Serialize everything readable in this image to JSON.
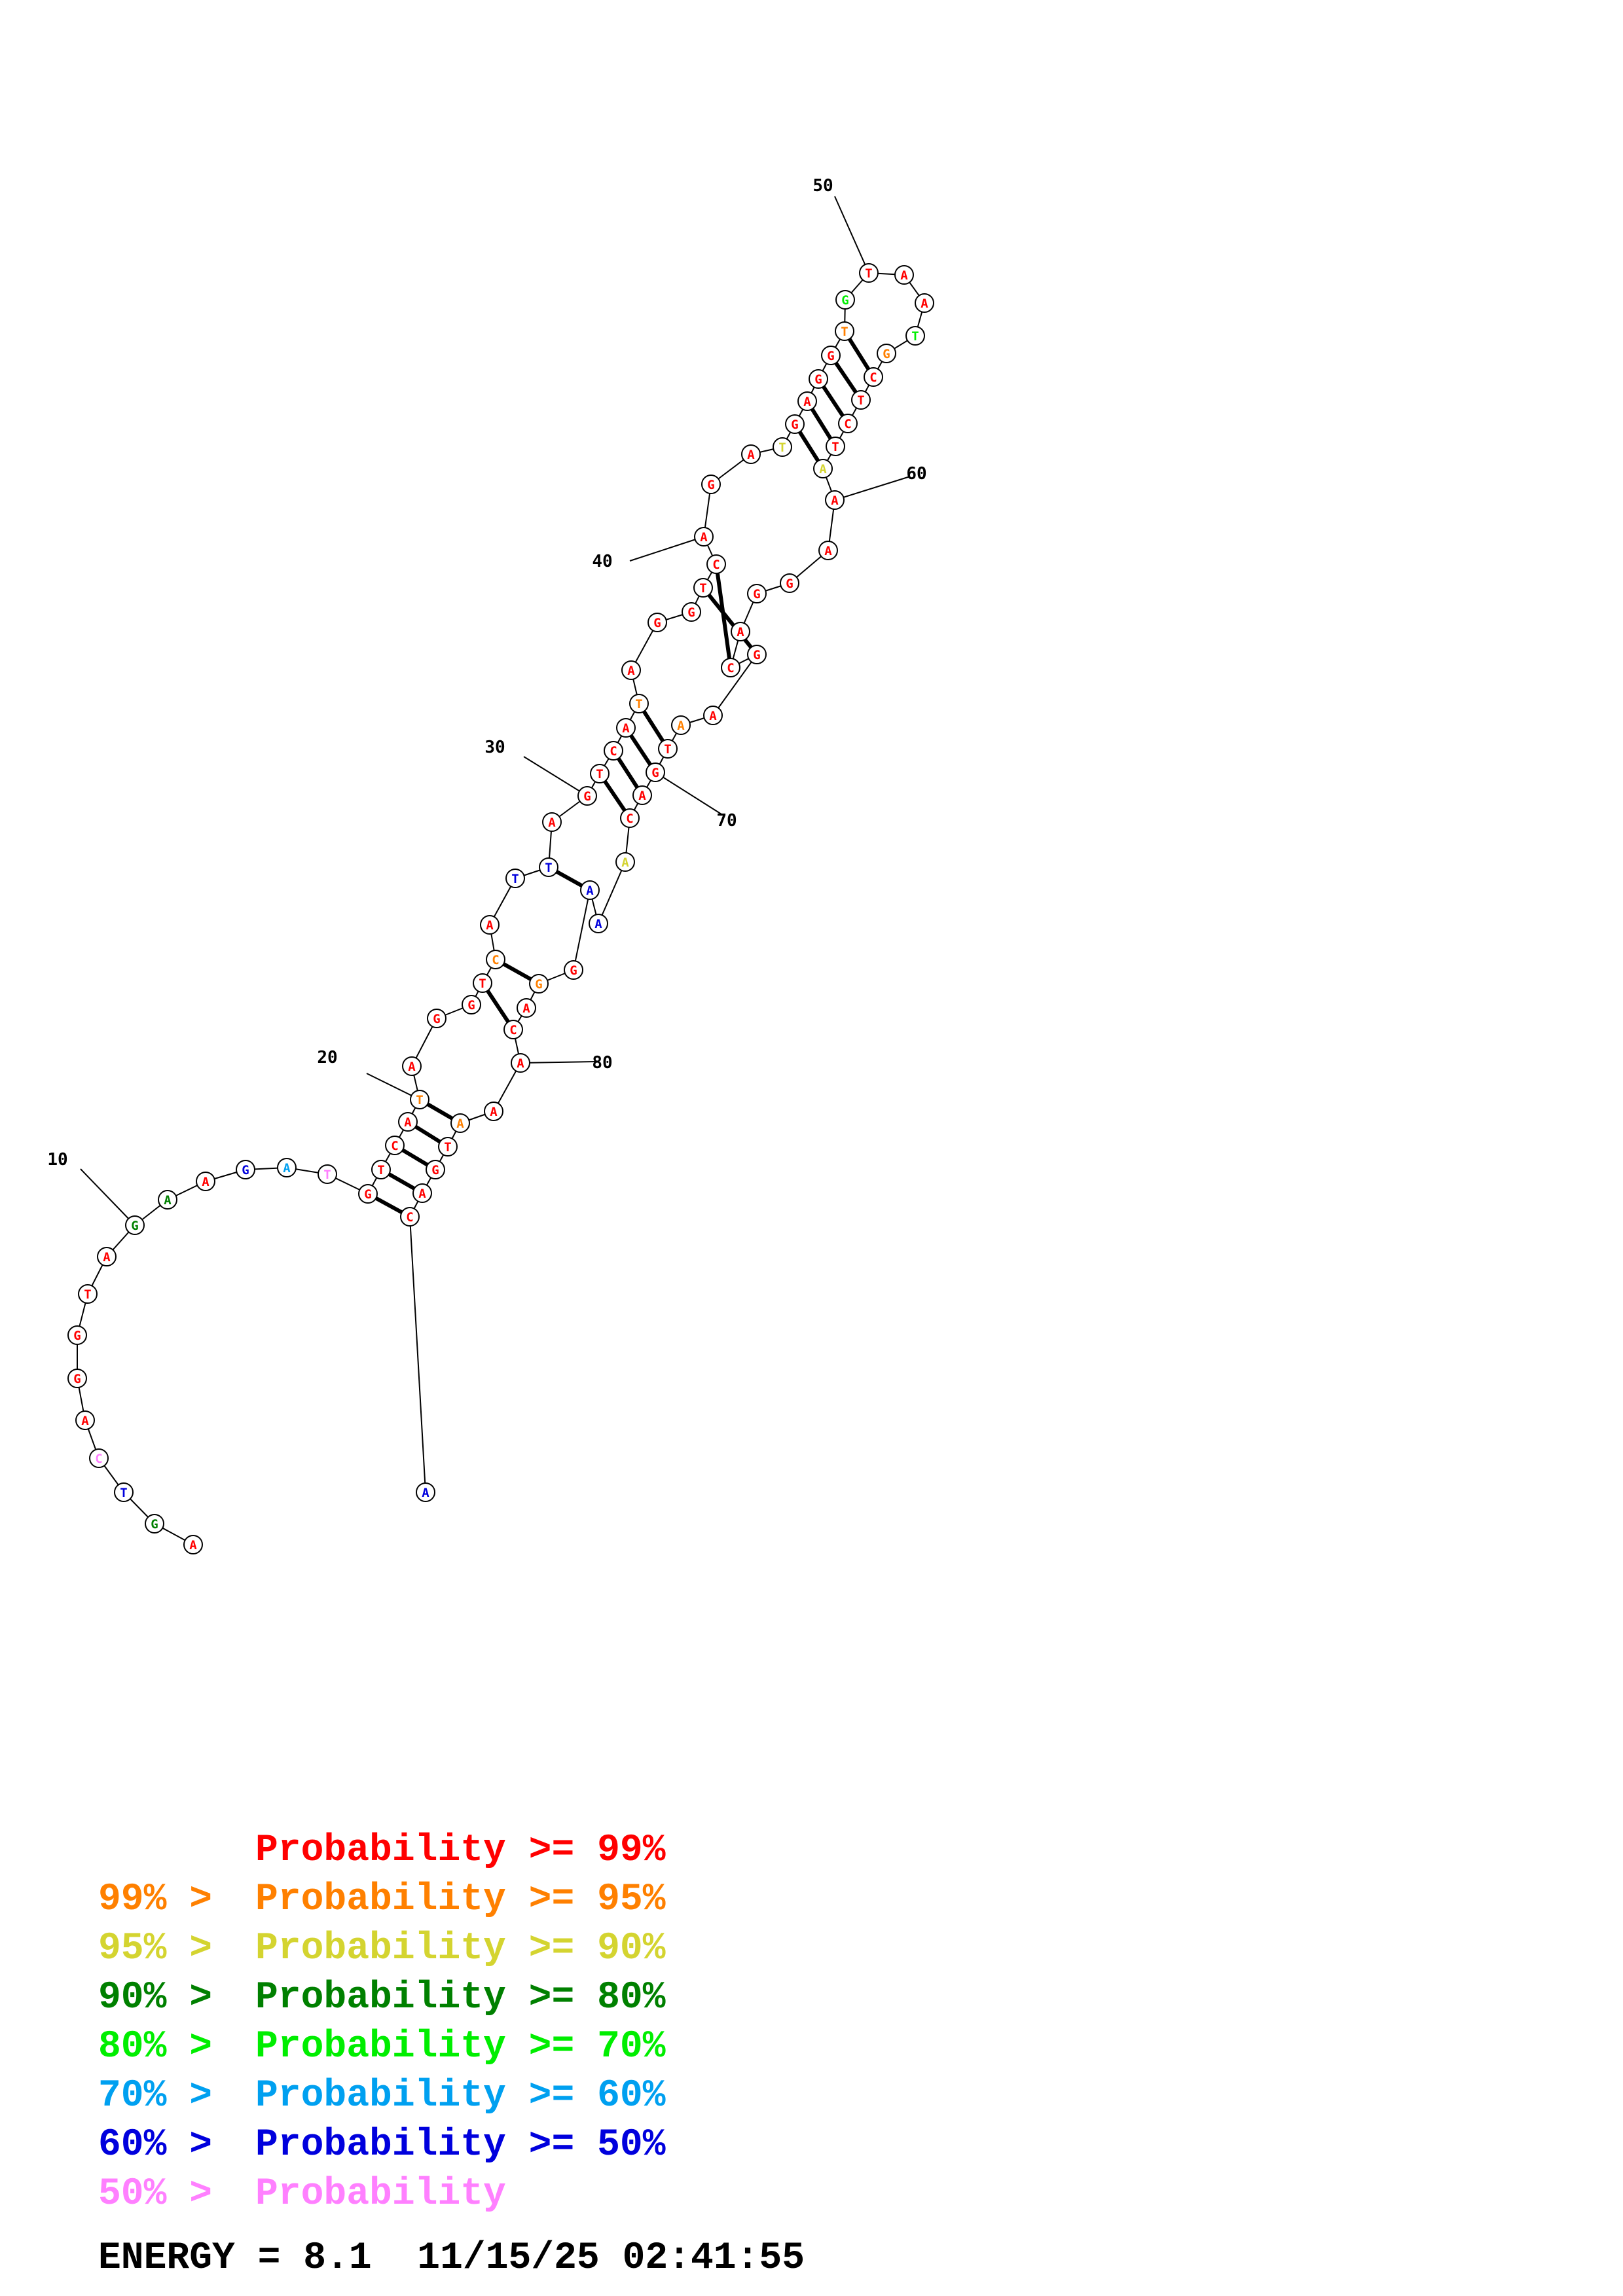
{
  "colors": {
    "p99": "#ff0000",
    "p95": "#ff8000",
    "p90": "#d4d430",
    "p80": "#008000",
    "p70": "#00ee00",
    "p60": "#00a0f0",
    "p50": "#0000dd",
    "plow": "#ff80ff"
  },
  "nucleotides": [
    {
      "n": 1,
      "base": "A",
      "p": "p99"
    },
    {
      "n": 2,
      "base": "G",
      "p": "p80"
    },
    {
      "n": 3,
      "base": "T",
      "p": "p50"
    },
    {
      "n": 4,
      "base": "C",
      "p": "plow"
    },
    {
      "n": 5,
      "base": "A",
      "p": "p99"
    },
    {
      "n": 6,
      "base": "G",
      "p": "p99"
    },
    {
      "n": 7,
      "base": "G",
      "p": "p99"
    },
    {
      "n": 8,
      "base": "T",
      "p": "p99"
    },
    {
      "n": 9,
      "base": "A",
      "p": "p99"
    },
    {
      "n": 10,
      "base": "G",
      "p": "p80"
    },
    {
      "n": 11,
      "base": "A",
      "p": "p80"
    },
    {
      "n": 12,
      "base": "A",
      "p": "p99"
    },
    {
      "n": 13,
      "base": "G",
      "p": "p50"
    },
    {
      "n": 14,
      "base": "A",
      "p": "p60"
    },
    {
      "n": 15,
      "base": "T",
      "p": "plow"
    },
    {
      "n": 16,
      "base": "G",
      "p": "p99"
    },
    {
      "n": 17,
      "base": "T",
      "p": "p99"
    },
    {
      "n": 18,
      "base": "C",
      "p": "p99"
    },
    {
      "n": 19,
      "base": "A",
      "p": "p99"
    },
    {
      "n": 20,
      "base": "T",
      "p": "p95"
    },
    {
      "n": 21,
      "base": "A",
      "p": "p99"
    },
    {
      "n": 22,
      "base": "G",
      "p": "p99"
    },
    {
      "n": 23,
      "base": "G",
      "p": "p99"
    },
    {
      "n": 24,
      "base": "T",
      "p": "p99"
    },
    {
      "n": 25,
      "base": "C",
      "p": "p95"
    },
    {
      "n": 26,
      "base": "A",
      "p": "p99"
    },
    {
      "n": 27,
      "base": "T",
      "p": "p50"
    },
    {
      "n": 28,
      "base": "T",
      "p": "p50"
    },
    {
      "n": 29,
      "base": "A",
      "p": "p99"
    },
    {
      "n": 30,
      "base": "G",
      "p": "p99"
    },
    {
      "n": 31,
      "base": "T",
      "p": "p99"
    },
    {
      "n": 32,
      "base": "C",
      "p": "p99"
    },
    {
      "n": 33,
      "base": "A",
      "p": "p99"
    },
    {
      "n": 34,
      "base": "T",
      "p": "p95"
    },
    {
      "n": 35,
      "base": "A",
      "p": "p99"
    },
    {
      "n": 36,
      "base": "G",
      "p": "p99"
    },
    {
      "n": 37,
      "base": "G",
      "p": "p99"
    },
    {
      "n": 38,
      "base": "T",
      "p": "p99"
    },
    {
      "n": 39,
      "base": "C",
      "p": "p99"
    },
    {
      "n": 40,
      "base": "A",
      "p": "p99"
    },
    {
      "n": 41,
      "base": "G",
      "p": "p99"
    },
    {
      "n": 42,
      "base": "A",
      "p": "p99"
    },
    {
      "n": 43,
      "base": "T",
      "p": "p90"
    },
    {
      "n": 44,
      "base": "G",
      "p": "p99"
    },
    {
      "n": 45,
      "base": "A",
      "p": "p99"
    },
    {
      "n": 46,
      "base": "G",
      "p": "p99"
    },
    {
      "n": 47,
      "base": "G",
      "p": "p99"
    },
    {
      "n": 48,
      "base": "T",
      "p": "p95"
    },
    {
      "n": 49,
      "base": "G",
      "p": "p70"
    },
    {
      "n": 50,
      "base": "T",
      "p": "p99"
    },
    {
      "n": 51,
      "base": "A",
      "p": "p99"
    },
    {
      "n": 52,
      "base": "A",
      "p": "p99"
    },
    {
      "n": 53,
      "base": "T",
      "p": "p70"
    },
    {
      "n": 54,
      "base": "G",
      "p": "p95"
    },
    {
      "n": 55,
      "base": "C",
      "p": "p99"
    },
    {
      "n": 56,
      "base": "T",
      "p": "p99"
    },
    {
      "n": 57,
      "base": "C",
      "p": "p99"
    },
    {
      "n": 58,
      "base": "T",
      "p": "p99"
    },
    {
      "n": 59,
      "base": "A",
      "p": "p90"
    },
    {
      "n": 60,
      "base": "A",
      "p": "p99"
    },
    {
      "n": 61,
      "base": "A",
      "p": "p99"
    },
    {
      "n": 62,
      "base": "G",
      "p": "p99"
    },
    {
      "n": 63,
      "base": "G",
      "p": "p99"
    },
    {
      "n": 64,
      "base": "A",
      "p": "p99"
    },
    {
      "n": 65,
      "base": "C",
      "p": "p99"
    },
    {
      "n": 66,
      "base": "G",
      "p": "p99"
    },
    {
      "n": 67,
      "base": "A",
      "p": "p99"
    },
    {
      "n": 68,
      "base": "A",
      "p": "p95"
    },
    {
      "n": 69,
      "base": "T",
      "p": "p99"
    },
    {
      "n": 70,
      "base": "G",
      "p": "p99"
    },
    {
      "n": 71,
      "base": "A",
      "p": "p99"
    },
    {
      "n": 72,
      "base": "C",
      "p": "p99"
    },
    {
      "n": 73,
      "base": "A",
      "p": "p90"
    },
    {
      "n": 74,
      "base": "A",
      "p": "p50"
    },
    {
      "n": 75,
      "base": "A",
      "p": "p50"
    },
    {
      "n": 76,
      "base": "G",
      "p": "p99"
    },
    {
      "n": 77,
      "base": "G",
      "p": "p95"
    },
    {
      "n": 78,
      "base": "A",
      "p": "p99"
    },
    {
      "n": 79,
      "base": "C",
      "p": "p99"
    },
    {
      "n": 80,
      "base": "A",
      "p": "p99"
    },
    {
      "n": 81,
      "base": "A",
      "p": "p99"
    },
    {
      "n": 82,
      "base": "A",
      "p": "p95"
    },
    {
      "n": 83,
      "base": "T",
      "p": "p99"
    },
    {
      "n": 84,
      "base": "G",
      "p": "p99"
    },
    {
      "n": 85,
      "base": "A",
      "p": "p99"
    },
    {
      "n": 86,
      "base": "C",
      "p": "p99"
    },
    {
      "n": 87,
      "base": "A",
      "p": "p50"
    }
  ],
  "base_pairs": [
    [
      16,
      86
    ],
    [
      17,
      85
    ],
    [
      18,
      84
    ],
    [
      19,
      83
    ],
    [
      20,
      82
    ],
    [
      24,
      79
    ],
    [
      25,
      77
    ],
    [
      28,
      75
    ],
    [
      31,
      72
    ],
    [
      32,
      71
    ],
    [
      33,
      70
    ],
    [
      34,
      69
    ],
    [
      38,
      66
    ],
    [
      39,
      65
    ],
    [
      44,
      59
    ],
    [
      45,
      58
    ],
    [
      46,
      57
    ],
    [
      47,
      56
    ],
    [
      48,
      55
    ]
  ],
  "position_labels": [
    {
      "n": 10,
      "text": "10"
    },
    {
      "n": 20,
      "text": "20"
    },
    {
      "n": 30,
      "text": "30"
    },
    {
      "n": 40,
      "text": "40"
    },
    {
      "n": 50,
      "text": "50"
    },
    {
      "n": 60,
      "text": "60"
    },
    {
      "n": 70,
      "text": "70"
    },
    {
      "n": 80,
      "text": "80"
    }
  ],
  "legend": [
    {
      "low": "",
      "sep": "",
      "text": "Probability >= 99%",
      "color": "p99"
    },
    {
      "low": "99%",
      "sep": " > ",
      "text": "Probability >= 95%",
      "color": "p95"
    },
    {
      "low": "95%",
      "sep": " > ",
      "text": "Probability >= 90%",
      "color": "p90"
    },
    {
      "low": "90%",
      "sep": " > ",
      "text": "Probability >= 80%",
      "color": "p80"
    },
    {
      "low": "80%",
      "sep": " > ",
      "text": "Probability >= 70%",
      "color": "p70"
    },
    {
      "low": "70%",
      "sep": " > ",
      "text": "Probability >= 60%",
      "color": "p60"
    },
    {
      "low": "60%",
      "sep": " > ",
      "text": "Probability >= 50%",
      "color": "p50"
    },
    {
      "low": "50%",
      "sep": " > ",
      "text": "Probability",
      "color": "plow"
    }
  ],
  "energy": {
    "label": "ENERGY = 8.1",
    "date": "11/15/25",
    "time": "02:41:55"
  }
}
